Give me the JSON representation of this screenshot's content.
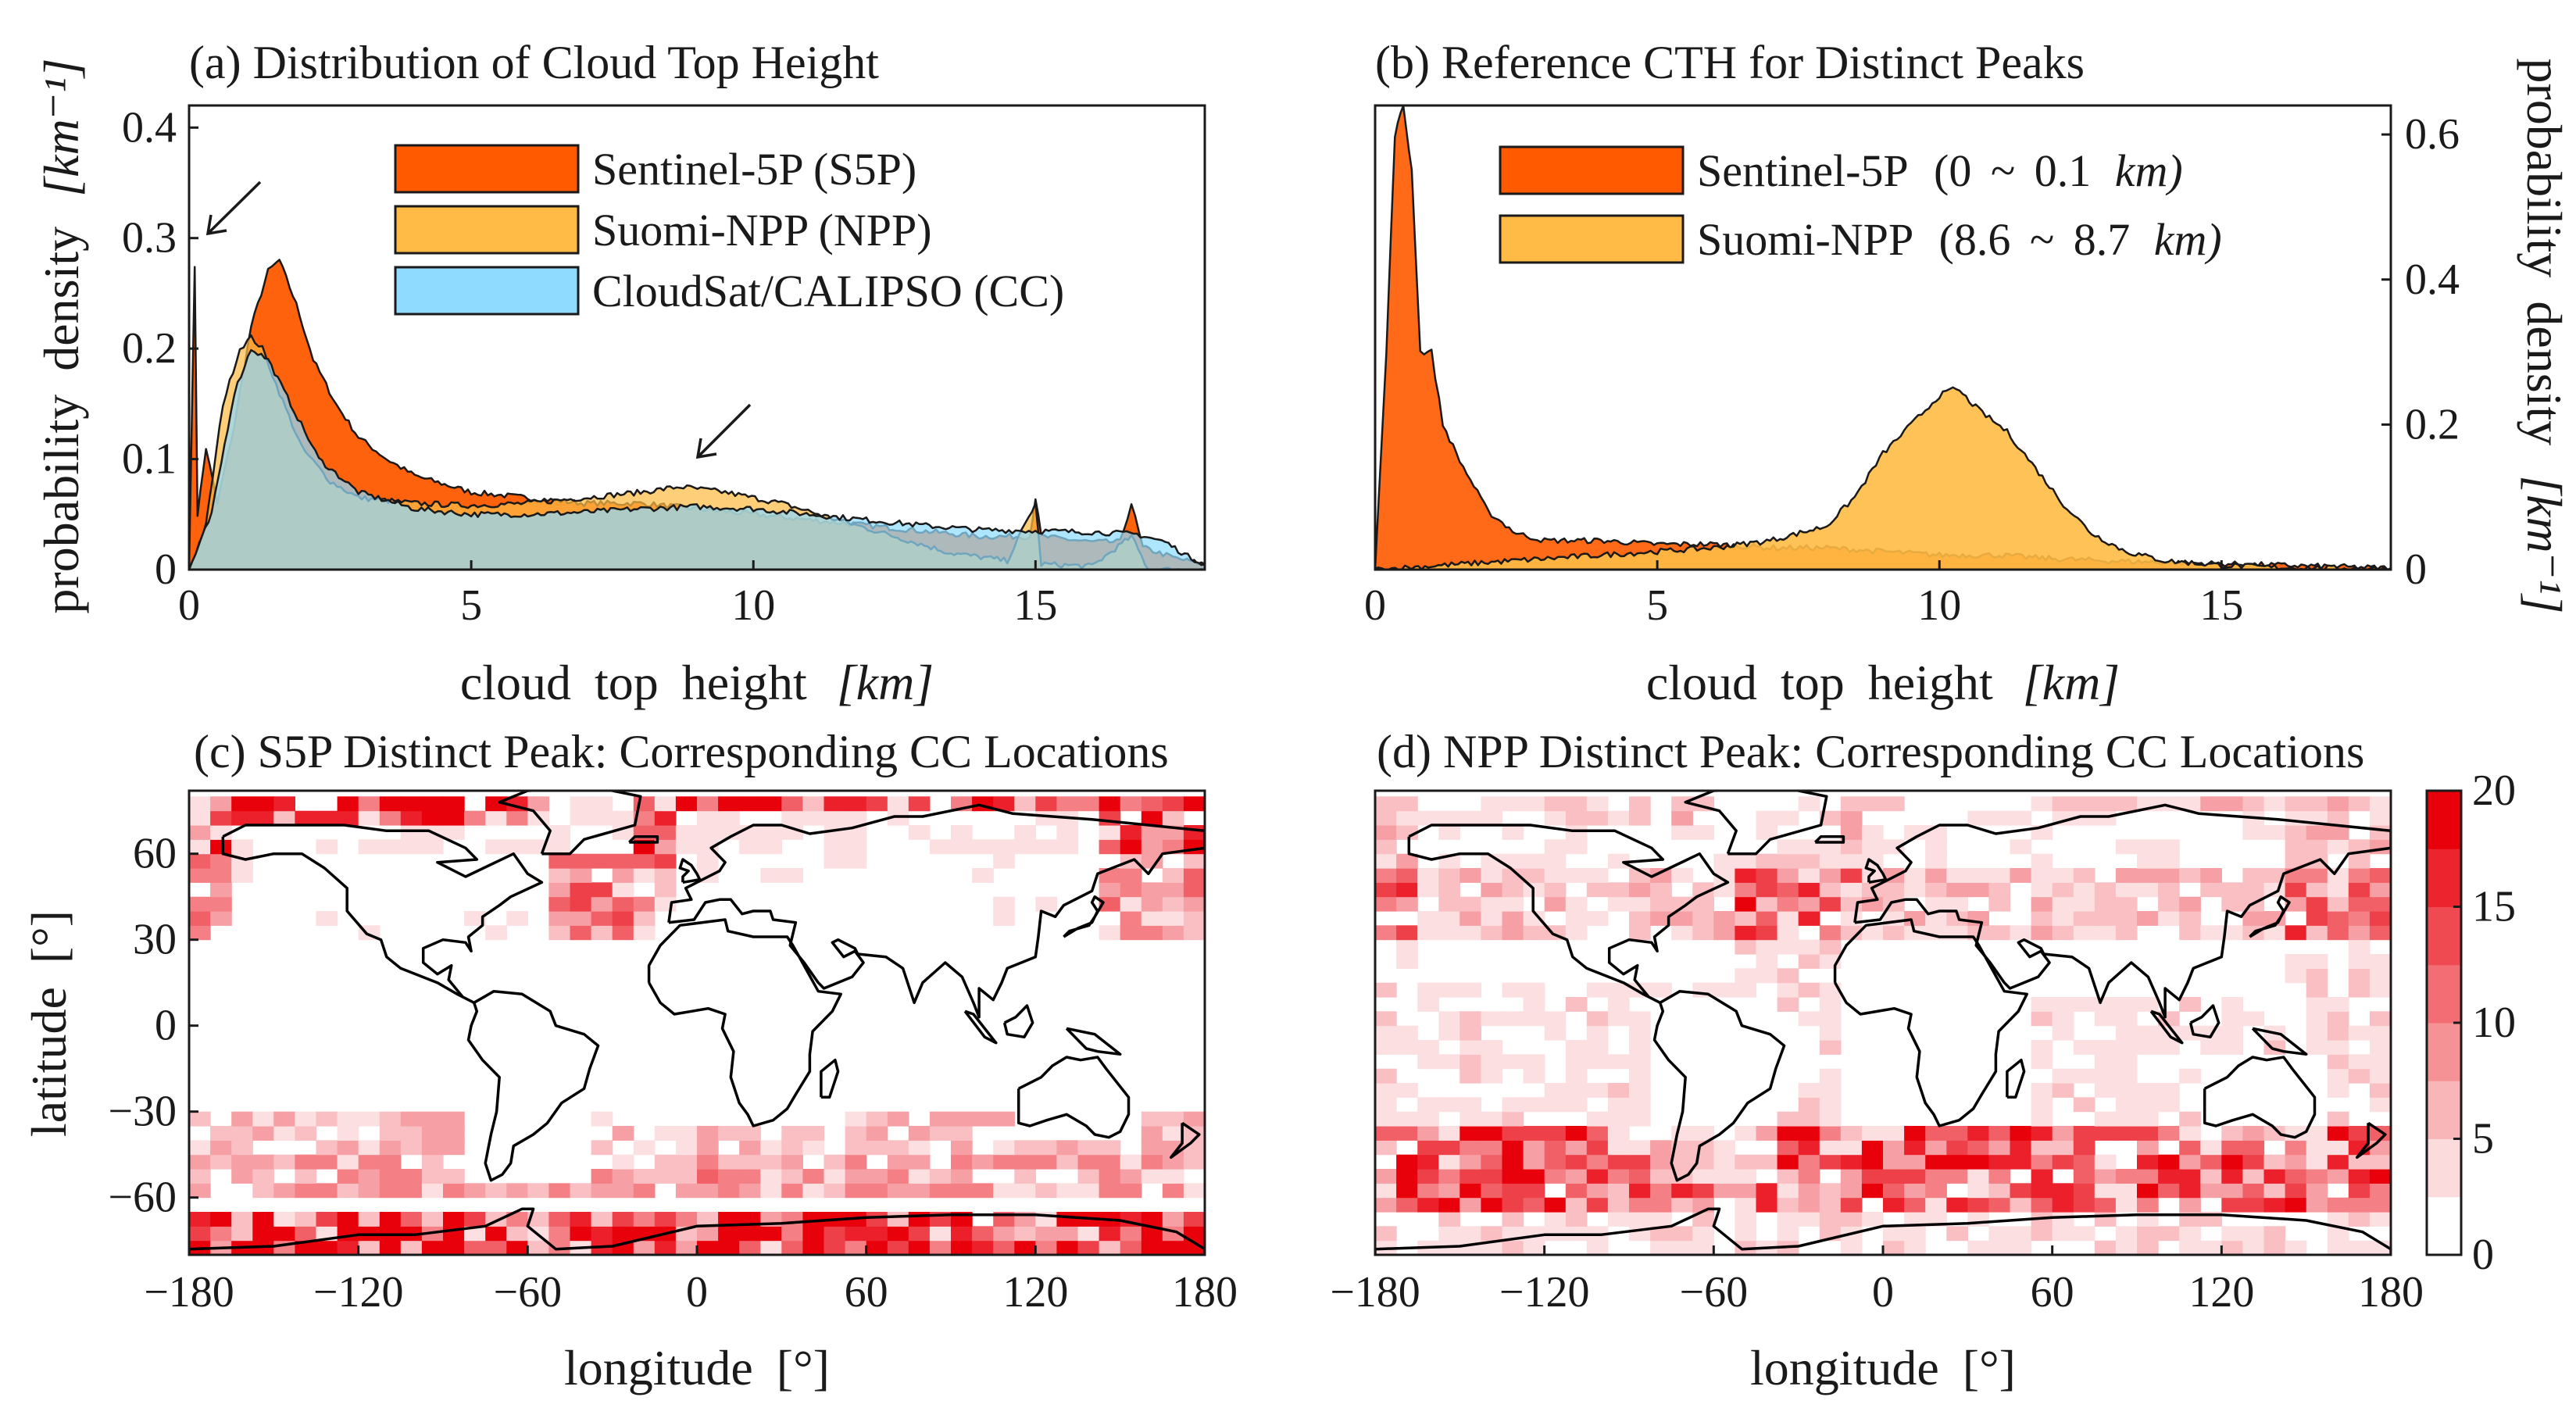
{
  "chart_data": [
    {
      "id": "a",
      "type": "area",
      "title": "(a) Distribution of Cloud Top Height",
      "xlabel": "cloud top height",
      "xlabel_unit": "[km]",
      "ylabel": "probability density",
      "ylabel_unit": "[km⁻¹]",
      "xlim": [
        0,
        18
      ],
      "ylim": [
        0,
        0.42
      ],
      "xticks": [
        "0",
        "5",
        "10",
        "15"
      ],
      "xtick_values": [
        0,
        5,
        10,
        15
      ],
      "yticks": [
        "0",
        "0.1",
        "0.2",
        "0.3",
        "0.4"
      ],
      "ytick_values": [
        0,
        0.1,
        0.2,
        0.3,
        0.4
      ],
      "series": [
        {
          "name": "Sentinel-5P (S5P)",
          "color": "#ff5a00",
          "points": [
            [
              0,
              0.0
            ],
            [
              0.1,
              0.275
            ],
            [
              0.15,
              0.05
            ],
            [
              0.3,
              0.11
            ],
            [
              0.5,
              0.06
            ],
            [
              0.8,
              0.13
            ],
            [
              1.1,
              0.22
            ],
            [
              1.4,
              0.27
            ],
            [
              1.6,
              0.28
            ],
            [
              1.9,
              0.24
            ],
            [
              2.2,
              0.19
            ],
            [
              2.6,
              0.15
            ],
            [
              3.0,
              0.12
            ],
            [
              3.5,
              0.1
            ],
            [
              4.0,
              0.085
            ],
            [
              5.0,
              0.07
            ],
            [
              6.0,
              0.065
            ],
            [
              7.0,
              0.06
            ],
            [
              8.0,
              0.06
            ],
            [
              9.0,
              0.055
            ],
            [
              10.0,
              0.05
            ],
            [
              11.0,
              0.045
            ],
            [
              12.0,
              0.04
            ],
            [
              13.0,
              0.035
            ],
            [
              14.0,
              0.03
            ],
            [
              14.9,
              0.03
            ],
            [
              15.0,
              0.065
            ],
            [
              15.1,
              0.03
            ],
            [
              16.0,
              0.025
            ],
            [
              16.5,
              0.025
            ],
            [
              16.7,
              0.06
            ],
            [
              16.9,
              0.02
            ],
            [
              17.5,
              0.01
            ],
            [
              18,
              0.005
            ]
          ]
        },
        {
          "name": "Suomi-NPP (NPP)",
          "color": "#ffbb45",
          "points": [
            [
              0,
              0.0
            ],
            [
              0.3,
              0.04
            ],
            [
              0.6,
              0.15
            ],
            [
              0.9,
              0.2
            ],
            [
              1.1,
              0.21
            ],
            [
              1.3,
              0.2
            ],
            [
              1.6,
              0.16
            ],
            [
              2.0,
              0.11
            ],
            [
              2.5,
              0.08
            ],
            [
              3.0,
              0.065
            ],
            [
              4.0,
              0.06
            ],
            [
              5.0,
              0.058
            ],
            [
              6.0,
              0.06
            ],
            [
              7.0,
              0.065
            ],
            [
              8.0,
              0.07
            ],
            [
              8.7,
              0.075
            ],
            [
              9.5,
              0.07
            ],
            [
              10.5,
              0.06
            ],
            [
              11.5,
              0.045
            ],
            [
              12.5,
              0.03
            ],
            [
              13.5,
              0.015
            ],
            [
              14.5,
              0.008
            ],
            [
              15.0,
              0.06
            ],
            [
              15.1,
              0.005
            ],
            [
              16.0,
              0.003
            ],
            [
              16.7,
              0.03
            ],
            [
              17.0,
              0.0
            ],
            [
              18,
              0.0
            ]
          ]
        },
        {
          "name": "CloudSat/CALIPSO (CC)",
          "color": "#8fdbff",
          "points": [
            [
              0,
              0.0
            ],
            [
              0.4,
              0.05
            ],
            [
              0.8,
              0.16
            ],
            [
              1.1,
              0.2
            ],
            [
              1.4,
              0.19
            ],
            [
              1.8,
              0.15
            ],
            [
              2.3,
              0.1
            ],
            [
              3.0,
              0.07
            ],
            [
              4.0,
              0.055
            ],
            [
              5.0,
              0.05
            ],
            [
              6.0,
              0.05
            ],
            [
              7.0,
              0.052
            ],
            [
              8.0,
              0.055
            ],
            [
              9.0,
              0.057
            ],
            [
              10.0,
              0.055
            ],
            [
              11.0,
              0.05
            ],
            [
              12.0,
              0.045
            ],
            [
              13.0,
              0.04
            ],
            [
              14.0,
              0.036
            ],
            [
              15.0,
              0.035
            ],
            [
              16.0,
              0.034
            ],
            [
              16.8,
              0.032
            ],
            [
              17.3,
              0.025
            ],
            [
              17.7,
              0.012
            ],
            [
              18,
              0.005
            ]
          ]
        }
      ],
      "annotations": [
        "arrow near 0.2 km spike",
        "arrow near 8.7 km bump"
      ]
    },
    {
      "id": "b",
      "type": "area",
      "title": "(b) Reference CTH for Distinct Peaks",
      "xlabel": "cloud top height",
      "xlabel_unit": "[km]",
      "ylabel": "probability density",
      "ylabel_unit": "[km⁻¹]",
      "yaxis_side": "right",
      "xlim": [
        0,
        18
      ],
      "ylim": [
        0,
        0.64
      ],
      "xticks": [
        "0",
        "5",
        "10",
        "15"
      ],
      "xtick_values": [
        0,
        5,
        10,
        15
      ],
      "yticks": [
        "0",
        "0.2",
        "0.4",
        "0.6"
      ],
      "ytick_values": [
        0,
        0.2,
        0.4,
        0.6
      ],
      "legend_texts": [
        [
          "Sentinel-5P",
          "(0 ~ 0.1",
          "km)"
        ],
        [
          "Suomi-NPP",
          "(8.6 ~ 8.7",
          "km)"
        ]
      ],
      "series": [
        {
          "name": "Sentinel-5P (0 ~ 0.1 km)",
          "color": "#ff5a00",
          "points": [
            [
              0,
              0.0
            ],
            [
              0.2,
              0.3
            ],
            [
              0.35,
              0.6
            ],
            [
              0.5,
              0.64
            ],
            [
              0.65,
              0.55
            ],
            [
              0.8,
              0.3
            ],
            [
              1.0,
              0.3
            ],
            [
              1.2,
              0.2
            ],
            [
              1.5,
              0.15
            ],
            [
              2.0,
              0.08
            ],
            [
              2.5,
              0.05
            ],
            [
              3.0,
              0.04
            ],
            [
              4.0,
              0.04
            ],
            [
              5.0,
              0.035
            ],
            [
              6.0,
              0.035
            ],
            [
              7.0,
              0.03
            ],
            [
              8.0,
              0.03
            ],
            [
              9.0,
              0.025
            ],
            [
              10.0,
              0.02
            ],
            [
              11.0,
              0.02
            ],
            [
              12.0,
              0.015
            ],
            [
              13.0,
              0.012
            ],
            [
              14.0,
              0.01
            ],
            [
              15.0,
              0.008
            ],
            [
              16.0,
              0.006
            ],
            [
              17.0,
              0.004
            ],
            [
              18,
              0.002
            ]
          ]
        },
        {
          "name": "Suomi-NPP (8.6 ~ 8.7 km)",
          "color": "#ffbb45",
          "points": [
            [
              0,
              0.0
            ],
            [
              1.0,
              0.005
            ],
            [
              2.0,
              0.01
            ],
            [
              3.0,
              0.015
            ],
            [
              4.0,
              0.02
            ],
            [
              5.0,
              0.025
            ],
            [
              6.0,
              0.03
            ],
            [
              7.0,
              0.04
            ],
            [
              8.0,
              0.06
            ],
            [
              8.5,
              0.1
            ],
            [
              9.0,
              0.16
            ],
            [
              9.5,
              0.2
            ],
            [
              10.0,
              0.24
            ],
            [
              10.3,
              0.25
            ],
            [
              10.7,
              0.22
            ],
            [
              11.2,
              0.19
            ],
            [
              11.7,
              0.14
            ],
            [
              12.2,
              0.09
            ],
            [
              12.7,
              0.05
            ],
            [
              13.3,
              0.025
            ],
            [
              14.0,
              0.012
            ],
            [
              15.0,
              0.006
            ],
            [
              16.0,
              0.003
            ],
            [
              17.0,
              0.002
            ],
            [
              18,
              0.001
            ]
          ]
        }
      ]
    },
    {
      "id": "c",
      "type": "heatmap",
      "title": "(c) S5P Distinct Peak: Corresponding CC Locations",
      "xlabel": "longitude [°]",
      "ylabel": "latitude [°]",
      "xlim": [
        -180,
        180
      ],
      "ylim": [
        -80,
        82
      ],
      "xticks": [
        "−180",
        "−120",
        "−60",
        "0",
        "60",
        "120",
        "180"
      ],
      "xtick_values": [
        -180,
        -120,
        -60,
        0,
        60,
        120,
        180
      ],
      "yticks": [
        "60",
        "30",
        "0",
        "−30",
        "−60"
      ],
      "ytick_values": [
        60,
        30,
        0,
        -30,
        -60
      ],
      "density_bands": [
        {
          "lat": [
            60,
            82
          ],
          "level": 17
        },
        {
          "lat": [
            30,
            60
          ],
          "level": 10
        },
        {
          "lat": [
            -45,
            -30
          ],
          "level": 6
        },
        {
          "lat": [
            -60,
            -45
          ],
          "level": 8
        },
        {
          "lat": [
            -80,
            -65
          ],
          "level": 19
        }
      ]
    },
    {
      "id": "d",
      "type": "heatmap",
      "title": "(d) NPP Distinct Peak: Corresponding CC Locations",
      "xlabel": "longitude [°]",
      "xlim": [
        -180,
        180
      ],
      "ylim": [
        -80,
        82
      ],
      "xticks": [
        "−180",
        "−120",
        "−60",
        "0",
        "60",
        "120",
        "180"
      ],
      "xtick_values": [
        -180,
        -120,
        -60,
        0,
        60,
        120,
        180
      ],
      "density_bands": [
        {
          "lat": [
            55,
            82
          ],
          "level": 5
        },
        {
          "lat": [
            30,
            55
          ],
          "level": 13
        },
        {
          "lat": [
            0,
            30
          ],
          "level": 3
        },
        {
          "lat": [
            -35,
            0
          ],
          "level": 3
        },
        {
          "lat": [
            -65,
            -35
          ],
          "level": 14
        },
        {
          "lat": [
            -80,
            -65
          ],
          "level": 3
        }
      ],
      "colorbar": {
        "min": 0,
        "max": 20,
        "ticks": [
          "20",
          "15",
          "10",
          "5",
          "0"
        ],
        "tick_values": [
          20,
          15,
          10,
          5,
          0
        ],
        "color_low": "#ffffff",
        "color_high": "#e8000b"
      }
    }
  ]
}
